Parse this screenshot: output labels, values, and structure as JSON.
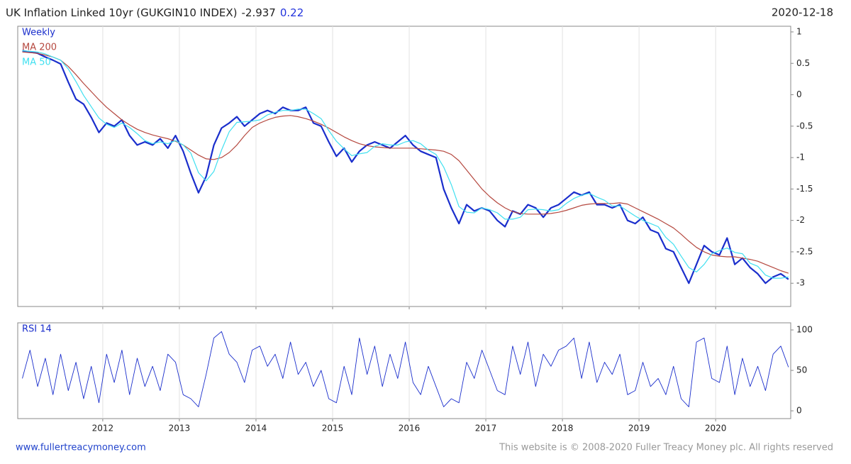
{
  "header": {
    "title": "UK Inflation Linked 10yr (GUKGIN10 INDEX)",
    "last": -2.937,
    "change": 0.22,
    "date": "2020-12-18"
  },
  "chart_data": [
    {
      "type": "line",
      "x": [
        2010.95,
        2011.05,
        2011.15,
        2011.25,
        2011.35,
        2011.45,
        2011.55,
        2011.65,
        2011.75,
        2011.85,
        2011.95,
        2012.05,
        2012.15,
        2012.25,
        2012.35,
        2012.45,
        2012.55,
        2012.65,
        2012.75,
        2012.85,
        2012.95,
        2013.05,
        2013.15,
        2013.25,
        2013.35,
        2013.45,
        2013.55,
        2013.65,
        2013.75,
        2013.85,
        2013.95,
        2014.05,
        2014.15,
        2014.25,
        2014.35,
        2014.45,
        2014.55,
        2014.65,
        2014.75,
        2014.85,
        2014.95,
        2015.05,
        2015.15,
        2015.25,
        2015.35,
        2015.45,
        2015.55,
        2015.65,
        2015.75,
        2015.85,
        2015.95,
        2016.05,
        2016.15,
        2016.25,
        2016.35,
        2016.45,
        2016.55,
        2016.65,
        2016.75,
        2016.85,
        2016.95,
        2017.05,
        2017.15,
        2017.25,
        2017.35,
        2017.45,
        2017.55,
        2017.65,
        2017.75,
        2017.85,
        2017.95,
        2018.05,
        2018.15,
        2018.25,
        2018.35,
        2018.45,
        2018.55,
        2018.65,
        2018.75,
        2018.85,
        2018.95,
        2019.05,
        2019.15,
        2019.25,
        2019.35,
        2019.45,
        2019.55,
        2019.65,
        2019.75,
        2019.85,
        2019.95,
        2020.05,
        2020.15,
        2020.25,
        2020.35,
        2020.45,
        2020.55,
        2020.65,
        2020.75,
        2020.85,
        2020.95
      ],
      "series": [
        {
          "name": "Weekly",
          "color": "#1a2ecc",
          "width": 2.2,
          "values": [
            0.7,
            0.68,
            0.66,
            0.6,
            0.55,
            0.49,
            0.2,
            -0.07,
            -0.15,
            -0.36,
            -0.6,
            -0.45,
            -0.5,
            -0.4,
            -0.65,
            -0.8,
            -0.75,
            -0.8,
            -0.7,
            -0.85,
            -0.65,
            -0.9,
            -1.25,
            -1.56,
            -1.3,
            -0.8,
            -0.53,
            -0.45,
            -0.35,
            -0.5,
            -0.4,
            -0.3,
            -0.25,
            -0.3,
            -0.2,
            -0.25,
            -0.25,
            -0.2,
            -0.45,
            -0.5,
            -0.75,
            -0.98,
            -0.85,
            -1.07,
            -0.9,
            -0.8,
            -0.75,
            -0.8,
            -0.85,
            -0.75,
            -0.65,
            -0.8,
            -0.9,
            -0.95,
            -1.0,
            -1.5,
            -1.8,
            -2.05,
            -1.75,
            -1.85,
            -1.8,
            -1.85,
            -2.0,
            -2.1,
            -1.85,
            -1.9,
            -1.75,
            -1.8,
            -1.95,
            -1.8,
            -1.75,
            -1.65,
            -1.55,
            -1.6,
            -1.55,
            -1.75,
            -1.75,
            -1.8,
            -1.75,
            -2.0,
            -2.05,
            -1.95,
            -2.15,
            -2.2,
            -2.45,
            -2.5,
            -2.75,
            -3.0,
            -2.7,
            -2.4,
            -2.5,
            -2.55,
            -2.28,
            -2.7,
            -2.6,
            -2.75,
            -2.85,
            -3.0,
            -2.9,
            -2.85,
            -2.937
          ]
        },
        {
          "name": "MA 200",
          "color": "#b5483f",
          "width": 1.2,
          "values": [
            0.68,
            0.67,
            0.66,
            0.63,
            0.6,
            0.55,
            0.45,
            0.32,
            0.18,
            0.05,
            -0.08,
            -0.2,
            -0.3,
            -0.4,
            -0.48,
            -0.55,
            -0.6,
            -0.64,
            -0.67,
            -0.7,
            -0.74,
            -0.8,
            -0.88,
            -0.96,
            -1.02,
            -1.03,
            -1.0,
            -0.92,
            -0.8,
            -0.65,
            -0.52,
            -0.45,
            -0.4,
            -0.36,
            -0.34,
            -0.33,
            -0.35,
            -0.38,
            -0.42,
            -0.47,
            -0.53,
            -0.6,
            -0.67,
            -0.73,
            -0.78,
            -0.81,
            -0.83,
            -0.84,
            -0.85,
            -0.85,
            -0.85,
            -0.85,
            -0.86,
            -0.87,
            -0.88,
            -0.9,
            -0.95,
            -1.05,
            -1.2,
            -1.35,
            -1.5,
            -1.62,
            -1.72,
            -1.8,
            -1.86,
            -1.89,
            -1.9,
            -1.9,
            -1.9,
            -1.89,
            -1.87,
            -1.84,
            -1.8,
            -1.76,
            -1.74,
            -1.73,
            -1.73,
            -1.73,
            -1.72,
            -1.74,
            -1.8,
            -1.86,
            -1.92,
            -1.98,
            -2.05,
            -2.12,
            -2.22,
            -2.33,
            -2.43,
            -2.5,
            -2.55,
            -2.57,
            -2.58,
            -2.58,
            -2.6,
            -2.62,
            -2.65,
            -2.7,
            -2.75,
            -2.8,
            -2.84
          ]
        },
        {
          "name": "MA 50",
          "color": "#40e0f0",
          "width": 1.2,
          "values": [
            0.7,
            0.69,
            0.68,
            0.65,
            0.6,
            0.55,
            0.41,
            0.21,
            -0.01,
            -0.19,
            -0.37,
            -0.47,
            -0.52,
            -0.45,
            -0.52,
            -0.62,
            -0.73,
            -0.78,
            -0.75,
            -0.78,
            -0.73,
            -0.8,
            -0.93,
            -1.24,
            -1.37,
            -1.22,
            -0.88,
            -0.59,
            -0.44,
            -0.43,
            -0.42,
            -0.4,
            -0.32,
            -0.28,
            -0.25,
            -0.25,
            -0.23,
            -0.23,
            -0.3,
            -0.38,
            -0.57,
            -0.74,
            -0.86,
            -0.97,
            -0.94,
            -0.92,
            -0.82,
            -0.78,
            -0.8,
            -0.8,
            -0.75,
            -0.73,
            -0.78,
            -0.88,
            -0.95,
            -1.15,
            -1.43,
            -1.78,
            -1.87,
            -1.88,
            -1.8,
            -1.83,
            -1.88,
            -1.98,
            -1.98,
            -1.95,
            -1.83,
            -1.82,
            -1.83,
            -1.85,
            -1.83,
            -1.73,
            -1.65,
            -1.6,
            -1.57,
            -1.63,
            -1.68,
            -1.77,
            -1.77,
            -1.85,
            -1.93,
            -2.0,
            -2.05,
            -2.1,
            -2.27,
            -2.38,
            -2.57,
            -2.75,
            -2.82,
            -2.7,
            -2.53,
            -2.48,
            -2.44,
            -2.51,
            -2.53,
            -2.68,
            -2.73,
            -2.87,
            -2.92,
            -2.92,
            -2.9
          ]
        }
      ],
      "xlim": [
        2010.89,
        2020.98
      ],
      "xticks": [
        2012,
        2013,
        2014,
        2015,
        2016,
        2017,
        2018,
        2019,
        2020
      ],
      "ylim": [
        -3.37,
        1.09
      ],
      "yticks": [
        1,
        0.5,
        0,
        -0.5,
        -1,
        -1.5,
        -2,
        -2.5,
        -3
      ],
      "grid": true
    },
    {
      "type": "line",
      "x": [
        2010.95,
        2011.05,
        2011.15,
        2011.25,
        2011.35,
        2011.45,
        2011.55,
        2011.65,
        2011.75,
        2011.85,
        2011.95,
        2012.05,
        2012.15,
        2012.25,
        2012.35,
        2012.45,
        2012.55,
        2012.65,
        2012.75,
        2012.85,
        2012.95,
        2013.05,
        2013.15,
        2013.25,
        2013.35,
        2013.45,
        2013.55,
        2013.65,
        2013.75,
        2013.85,
        2013.95,
        2014.05,
        2014.15,
        2014.25,
        2014.35,
        2014.45,
        2014.55,
        2014.65,
        2014.75,
        2014.85,
        2014.95,
        2015.05,
        2015.15,
        2015.25,
        2015.35,
        2015.45,
        2015.55,
        2015.65,
        2015.75,
        2015.85,
        2015.95,
        2016.05,
        2016.15,
        2016.25,
        2016.35,
        2016.45,
        2016.55,
        2016.65,
        2016.75,
        2016.85,
        2016.95,
        2017.05,
        2017.15,
        2017.25,
        2017.35,
        2017.45,
        2017.55,
        2017.65,
        2017.75,
        2017.85,
        2017.95,
        2018.05,
        2018.15,
        2018.25,
        2018.35,
        2018.45,
        2018.55,
        2018.65,
        2018.75,
        2018.85,
        2018.95,
        2019.05,
        2019.15,
        2019.25,
        2019.35,
        2019.45,
        2019.55,
        2019.65,
        2019.75,
        2019.85,
        2019.95,
        2020.05,
        2020.15,
        2020.25,
        2020.35,
        2020.45,
        2020.55,
        2020.65,
        2020.75,
        2020.85,
        2020.95
      ],
      "series": [
        {
          "name": "RSI 14",
          "color": "#1a2ecc",
          "width": 0.9,
          "values": [
            40,
            75,
            30,
            65,
            20,
            70,
            25,
            60,
            15,
            55,
            10,
            70,
            35,
            75,
            20,
            65,
            30,
            55,
            25,
            70,
            60,
            20,
            15,
            5,
            45,
            90,
            98,
            70,
            60,
            35,
            75,
            80,
            55,
            70,
            40,
            85,
            45,
            60,
            30,
            50,
            15,
            10,
            55,
            20,
            90,
            45,
            80,
            30,
            70,
            40,
            85,
            35,
            20,
            55,
            30,
            5,
            15,
            10,
            60,
            40,
            75,
            50,
            25,
            20,
            80,
            45,
            85,
            30,
            70,
            55,
            75,
            80,
            90,
            40,
            85,
            35,
            60,
            45,
            70,
            20,
            25,
            60,
            30,
            40,
            20,
            55,
            15,
            5,
            85,
            90,
            40,
            35,
            80,
            20,
            65,
            30,
            55,
            25,
            70,
            80,
            54
          ]
        }
      ],
      "xlim": [
        2010.89,
        2020.98
      ],
      "xticks": [
        2012,
        2013,
        2014,
        2015,
        2016,
        2017,
        2018,
        2019,
        2020
      ],
      "ylim": [
        -9.6,
        108.8
      ],
      "yticks": [
        100,
        50,
        0
      ],
      "grid": true
    }
  ],
  "footer": {
    "site": "www.fullertreacymoney.com",
    "copyright": "This website is © 2008-2020 Fuller Treacy Money plc. All rights reserved"
  }
}
